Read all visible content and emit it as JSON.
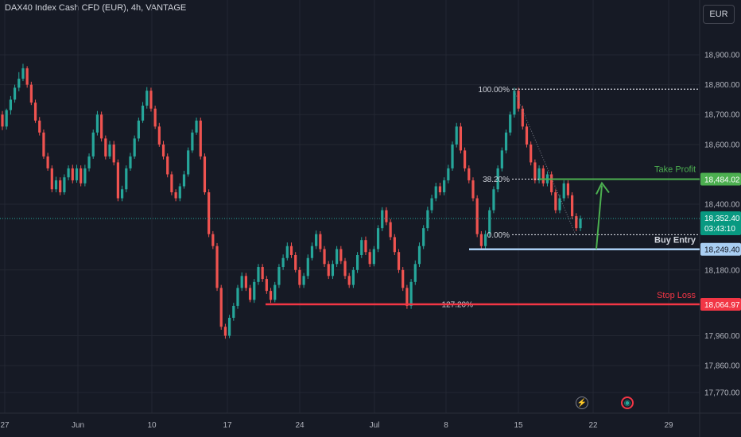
{
  "header": {
    "title": "DAX40 Index Cash CFD (EUR), 4h, VANTAGE"
  },
  "toolbar": {
    "currency": "EUR"
  },
  "icons": [
    {
      "name": "lightning-icon",
      "glyph": "⚡"
    },
    {
      "name": "event-icon",
      "glyph": "◉"
    }
  ],
  "colors": {
    "bg": "#161a25",
    "up": "#26a69a",
    "down": "#ef5350",
    "grid": "#232732",
    "axis_text": "#b2b5be",
    "take_profit": "#4caf50",
    "stop_loss": "#f23645",
    "entry": "#a9cef2",
    "fib": "#d1d4dc"
  },
  "chart_data": {
    "type": "candlestick",
    "title": "DAX40 Index Cash CFD (EUR), 4h, VANTAGE",
    "y_ticks": [
      18900,
      18800,
      18700,
      18600,
      18400,
      18180,
      17960,
      17860,
      17770
    ],
    "y_tick_labels": [
      "18,900.00",
      "18,800.00",
      "18,700.00",
      "18,600.00",
      "18,400.00",
      "18,180.00",
      "17,960.00",
      "17,860.00",
      "17,770.00"
    ],
    "ylim": [
      17715,
      19020
    ],
    "x_ticks": [
      "27",
      "Jun",
      "10",
      "17",
      "24",
      "Jul",
      "8",
      "15",
      "22",
      "29"
    ],
    "current_price": {
      "label": "18,352.40",
      "value": 18352.4,
      "countdown": "03:43:10"
    },
    "levels": [
      {
        "name": "Take Profit",
        "value": 18484.02,
        "label": "18,484.02",
        "fib": "38.20%"
      },
      {
        "name": "Buy Entry",
        "value": 18249.4,
        "label": "18,249.40"
      },
      {
        "name": "Stop Loss",
        "value": 18064.97,
        "label": "18,064.97",
        "fib": "127.20%"
      }
    ],
    "fib_levels": [
      {
        "label": "100.00%",
        "value": 18785
      },
      {
        "label": "38.20%",
        "value": 18484.02
      },
      {
        "label": "0.00%",
        "value": 18298
      },
      {
        "label": "127.20%",
        "value": 18064.97
      }
    ],
    "candles": [
      [
        18700,
        18660,
        18712,
        18648
      ],
      [
        18660,
        18715,
        18720,
        18650
      ],
      [
        18715,
        18750,
        18762,
        18700
      ],
      [
        18750,
        18790,
        18800,
        18740
      ],
      [
        18790,
        18820,
        18842,
        18778
      ],
      [
        18820,
        18855,
        18870,
        18812
      ],
      [
        18855,
        18800,
        18862,
        18790
      ],
      [
        18800,
        18740,
        18810,
        18732
      ],
      [
        18740,
        18680,
        18750,
        18672
      ],
      [
        18680,
        18640,
        18692,
        18630
      ],
      [
        18640,
        18560,
        18650,
        18552
      ],
      [
        18560,
        18520,
        18572,
        18512
      ],
      [
        18520,
        18450,
        18530,
        18440
      ],
      [
        18450,
        18480,
        18492,
        18440
      ],
      [
        18480,
        18440,
        18490,
        18430
      ],
      [
        18440,
        18490,
        18500,
        18432
      ],
      [
        18490,
        18520,
        18530,
        18480
      ],
      [
        18520,
        18480,
        18532,
        18470
      ],
      [
        18480,
        18520,
        18532,
        18472
      ],
      [
        18520,
        18470,
        18530,
        18460
      ],
      [
        18470,
        18520,
        18532,
        18460
      ],
      [
        18520,
        18560,
        18570,
        18510
      ],
      [
        18560,
        18640,
        18650,
        18552
      ],
      [
        18640,
        18700,
        18712,
        18630
      ],
      [
        18700,
        18620,
        18710,
        18610
      ],
      [
        18620,
        18560,
        18630,
        18550
      ],
      [
        18560,
        18600,
        18612,
        18552
      ],
      [
        18600,
        18540,
        18612,
        18530
      ],
      [
        18540,
        18420,
        18550,
        18410
      ],
      [
        18420,
        18450,
        18462,
        18410
      ],
      [
        18450,
        18520,
        18530,
        18440
      ],
      [
        18520,
        18560,
        18572,
        18512
      ],
      [
        18560,
        18620,
        18630,
        18552
      ],
      [
        18620,
        18680,
        18690,
        18610
      ],
      [
        18680,
        18730,
        18742,
        18672
      ],
      [
        18730,
        18780,
        18792,
        18720
      ],
      [
        18780,
        18720,
        18790,
        18710
      ],
      [
        18720,
        18660,
        18730,
        18652
      ],
      [
        18660,
        18600,
        18672,
        18592
      ],
      [
        18600,
        18560,
        18612,
        18550
      ],
      [
        18560,
        18500,
        18570,
        18490
      ],
      [
        18500,
        18440,
        18510,
        18430
      ],
      [
        18440,
        18420,
        18450,
        18410
      ],
      [
        18420,
        18460,
        18470,
        18410
      ],
      [
        18460,
        18500,
        18512,
        18452
      ],
      [
        18500,
        18580,
        18590,
        18492
      ],
      [
        18580,
        18640,
        18650,
        18572
      ],
      [
        18640,
        18680,
        18690,
        18632
      ],
      [
        18680,
        18560,
        18690,
        18550
      ],
      [
        18560,
        18440,
        18570,
        18432
      ],
      [
        18440,
        18300,
        18450,
        18290
      ],
      [
        18300,
        18260,
        18310,
        18250
      ],
      [
        18260,
        18120,
        18270,
        18110
      ],
      [
        18120,
        17990,
        18130,
        17980
      ],
      [
        17990,
        17960,
        18000,
        17950
      ],
      [
        17960,
        18020,
        18030,
        17952
      ],
      [
        18020,
        18060,
        18070,
        18010
      ],
      [
        18060,
        18120,
        18130,
        18050
      ],
      [
        18120,
        18160,
        18172,
        18110
      ],
      [
        18160,
        18120,
        18170,
        18110
      ],
      [
        18120,
        18080,
        18130,
        18072
      ],
      [
        18080,
        18140,
        18150,
        18070
      ],
      [
        18140,
        18190,
        18200,
        18130
      ],
      [
        18190,
        18150,
        18200,
        18140
      ],
      [
        18150,
        18110,
        18160,
        18100
      ],
      [
        18110,
        18080,
        18120,
        18070
      ],
      [
        18080,
        18130,
        18140,
        18072
      ],
      [
        18130,
        18190,
        18200,
        18120
      ],
      [
        18190,
        18220,
        18232,
        18180
      ],
      [
        18220,
        18260,
        18272,
        18212
      ],
      [
        18260,
        18230,
        18272,
        18220
      ],
      [
        18230,
        18180,
        18240,
        18172
      ],
      [
        18180,
        18130,
        18190,
        18120
      ],
      [
        18130,
        18160,
        18170,
        18120
      ],
      [
        18160,
        18220,
        18232,
        18150
      ],
      [
        18220,
        18260,
        18272,
        18212
      ],
      [
        18260,
        18300,
        18312,
        18250
      ],
      [
        18300,
        18250,
        18310,
        18240
      ],
      [
        18250,
        18200,
        18260,
        18190
      ],
      [
        18200,
        18160,
        18210,
        18150
      ],
      [
        18160,
        18200,
        18212,
        18150
      ],
      [
        18200,
        18250,
        18260,
        18190
      ],
      [
        18250,
        18210,
        18260,
        18200
      ],
      [
        18210,
        18160,
        18220,
        18150
      ],
      [
        18160,
        18130,
        18170,
        18120
      ],
      [
        18130,
        18180,
        18190,
        18120
      ],
      [
        18180,
        18230,
        18240,
        18170
      ],
      [
        18230,
        18280,
        18290,
        18220
      ],
      [
        18280,
        18240,
        18292,
        18230
      ],
      [
        18240,
        18200,
        18250,
        18190
      ],
      [
        18200,
        18250,
        18260,
        18192
      ],
      [
        18250,
        18320,
        18330,
        18240
      ],
      [
        18320,
        18380,
        18390,
        18310
      ],
      [
        18380,
        18340,
        18390,
        18330
      ],
      [
        18340,
        18290,
        18350,
        18280
      ],
      [
        18290,
        18240,
        18300,
        18230
      ],
      [
        18240,
        18180,
        18250,
        18170
      ],
      [
        18180,
        18120,
        18190,
        18110
      ],
      [
        18120,
        18060,
        18130,
        18050
      ],
      [
        18060,
        18140,
        18150,
        18050
      ],
      [
        18140,
        18200,
        18212,
        18130
      ],
      [
        18200,
        18260,
        18272,
        18190
      ],
      [
        18260,
        18320,
        18330,
        18250
      ],
      [
        18320,
        18380,
        18392,
        18310
      ],
      [
        18380,
        18420,
        18432,
        18370
      ],
      [
        18420,
        18460,
        18472,
        18410
      ],
      [
        18460,
        18440,
        18472,
        18430
      ],
      [
        18440,
        18480,
        18490,
        18430
      ],
      [
        18480,
        18520,
        18532,
        18470
      ],
      [
        18520,
        18600,
        18610,
        18512
      ],
      [
        18600,
        18660,
        18672,
        18590
      ],
      [
        18660,
        18580,
        18672,
        18570
      ],
      [
        18580,
        18520,
        18590,
        18510
      ],
      [
        18520,
        18480,
        18530,
        18470
      ],
      [
        18480,
        18420,
        18490,
        18410
      ],
      [
        18420,
        18300,
        18430,
        18290
      ],
      [
        18300,
        18260,
        18310,
        18250
      ],
      [
        18260,
        18300,
        18312,
        18250
      ],
      [
        18300,
        18380,
        18390,
        18290
      ],
      [
        18380,
        18450,
        18460,
        18370
      ],
      [
        18450,
        18520,
        18530,
        18440
      ],
      [
        18520,
        18580,
        18590,
        18510
      ],
      [
        18580,
        18640,
        18650,
        18570
      ],
      [
        18640,
        18700,
        18710,
        18630
      ],
      [
        18700,
        18780,
        18790,
        18690
      ],
      [
        18780,
        18720,
        18790,
        18710
      ],
      [
        18720,
        18660,
        18730,
        18650
      ],
      [
        18660,
        18600,
        18670,
        18590
      ],
      [
        18600,
        18540,
        18610,
        18530
      ],
      [
        18540,
        18480,
        18550,
        18470
      ],
      [
        18480,
        18520,
        18530,
        18470
      ],
      [
        18520,
        18470,
        18530,
        18460
      ],
      [
        18470,
        18500,
        18510,
        18460
      ],
      [
        18500,
        18440,
        18510,
        18430
      ],
      [
        18440,
        18380,
        18450,
        18370
      ],
      [
        18380,
        18420,
        18432,
        18370
      ],
      [
        18420,
        18470,
        18480,
        18410
      ],
      [
        18470,
        18430,
        18480,
        18420
      ],
      [
        18430,
        18360,
        18440,
        18350
      ],
      [
        18360,
        18320,
        18370,
        18310
      ],
      [
        18320,
        18352.4,
        18362,
        18310
      ]
    ]
  }
}
